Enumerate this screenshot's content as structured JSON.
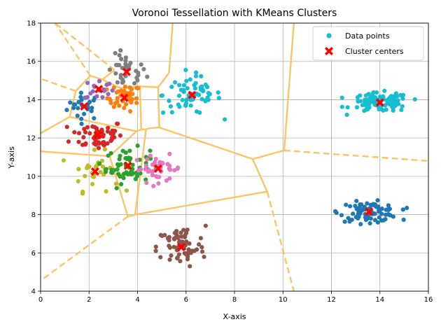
{
  "chart_data": {
    "type": "scatter",
    "title": "Voronoi Tessellation with KMeans Clusters",
    "xlabel": "X-axis",
    "ylabel": "Y-axis",
    "xlim": [
      0,
      16
    ],
    "ylim": [
      4,
      18
    ],
    "xticks": [
      0,
      2,
      4,
      6,
      8,
      10,
      12,
      14,
      16
    ],
    "yticks": [
      4,
      6,
      8,
      10,
      12,
      14,
      16,
      18
    ],
    "grid": true,
    "legend": {
      "placement": "top-right",
      "entries": [
        {
          "label": "Data points",
          "marker": "circle",
          "color": "#17becf"
        },
        {
          "label": "Cluster centers",
          "marker": "x",
          "color": "#ff0000"
        }
      ]
    },
    "voronoi_color": "#fbc15e",
    "center_color": "#ff0000",
    "clusters": [
      {
        "name": "c1",
        "color": "#1f77b4",
        "center": [
          1.8,
          13.65
        ],
        "spread": [
          0.35,
          0.35
        ],
        "n": 26
      },
      {
        "name": "c2",
        "color": "#ff7f0e",
        "center": [
          3.45,
          14.1
        ],
        "spread": [
          0.35,
          0.35
        ],
        "n": 40
      },
      {
        "name": "c3",
        "color": "#7f7f7f",
        "center": [
          3.55,
          15.45
        ],
        "spread": [
          0.4,
          0.45
        ],
        "n": 35
      },
      {
        "name": "c4",
        "color": "#9467bd",
        "center": [
          2.4,
          14.55
        ],
        "spread": [
          0.3,
          0.3
        ],
        "n": 18
      },
      {
        "name": "c5",
        "color": "#d62728",
        "center": [
          2.35,
          12.15
        ],
        "spread": [
          0.55,
          0.4
        ],
        "n": 55
      },
      {
        "name": "c6",
        "color": "#bcbd22",
        "center": [
          2.25,
          10.25
        ],
        "spread": [
          0.5,
          0.5
        ],
        "n": 30
      },
      {
        "name": "c7",
        "color": "#2ca02c",
        "center": [
          3.6,
          10.55
        ],
        "spread": [
          0.45,
          0.45
        ],
        "n": 60
      },
      {
        "name": "c8",
        "color": "#e377c2",
        "center": [
          4.85,
          10.4
        ],
        "spread": [
          0.5,
          0.35
        ],
        "n": 40
      },
      {
        "name": "c9",
        "color": "#17becf",
        "center": [
          6.25,
          14.25
        ],
        "spread": [
          0.6,
          0.5
        ],
        "n": 65
      },
      {
        "name": "c10",
        "color": "#17becf",
        "center": [
          14.0,
          13.85
        ],
        "spread": [
          0.6,
          0.25
        ],
        "n": 110
      },
      {
        "name": "c11",
        "color": "#1f77b4",
        "center": [
          13.55,
          8.15
        ],
        "spread": [
          0.6,
          0.25
        ],
        "n": 90
      },
      {
        "name": "c12",
        "color": "#8c564b",
        "center": [
          5.8,
          6.3
        ],
        "spread": [
          0.5,
          0.55
        ],
        "n": 70
      }
    ],
    "voronoi_segments": [
      {
        "from": [
          9.35,
          9.2
        ],
        "to": [
          8.75,
          10.9
        ],
        "style": "solid"
      },
      {
        "from": [
          8.75,
          10.9
        ],
        "to": [
          10.05,
          11.35
        ],
        "style": "solid"
      },
      {
        "from": [
          10.05,
          11.35
        ],
        "to": [
          10.45,
          18.0
        ],
        "style": "solid"
      },
      {
        "from": [
          10.05,
          11.35
        ],
        "to": [
          16.0,
          10.8
        ],
        "style": "dashed"
      },
      {
        "from": [
          9.35,
          9.2
        ],
        "to": [
          10.45,
          4.0
        ],
        "style": "dashed"
      },
      {
        "from": [
          9.35,
          9.2
        ],
        "to": [
          3.9,
          8.0
        ],
        "style": "solid"
      },
      {
        "from": [
          3.9,
          8.0
        ],
        "to": [
          3.6,
          7.9
        ],
        "style": "solid"
      },
      {
        "from": [
          3.6,
          7.9
        ],
        "to": [
          0.0,
          4.55
        ],
        "style": "dashed"
      },
      {
        "from": [
          3.6,
          7.9
        ],
        "to": [
          2.85,
          11.05
        ],
        "style": "solid"
      },
      {
        "from": [
          3.9,
          8.0
        ],
        "to": [
          4.35,
          12.45
        ],
        "style": "solid"
      },
      {
        "from": [
          8.75,
          10.9
        ],
        "to": [
          4.9,
          12.55
        ],
        "style": "solid"
      },
      {
        "from": [
          4.9,
          12.55
        ],
        "to": [
          4.45,
          12.5
        ],
        "style": "solid"
      },
      {
        "from": [
          4.45,
          12.5
        ],
        "to": [
          4.35,
          12.45
        ],
        "style": "solid"
      },
      {
        "from": [
          4.35,
          12.45
        ],
        "to": [
          4.15,
          12.45
        ],
        "style": "solid"
      },
      {
        "from": [
          4.15,
          12.45
        ],
        "to": [
          3.95,
          12.35
        ],
        "style": "solid"
      },
      {
        "from": [
          3.95,
          12.35
        ],
        "to": [
          2.85,
          11.05
        ],
        "style": "solid"
      },
      {
        "from": [
          2.85,
          11.05
        ],
        "to": [
          0.0,
          11.3
        ],
        "style": "solid"
      },
      {
        "from": [
          4.9,
          12.55
        ],
        "to": [
          4.85,
          14.65
        ],
        "style": "solid"
      },
      {
        "from": [
          4.85,
          14.65
        ],
        "to": [
          5.3,
          15.4
        ],
        "style": "solid"
      },
      {
        "from": [
          5.3,
          15.4
        ],
        "to": [
          5.45,
          18.0
        ],
        "style": "solid"
      },
      {
        "from": [
          4.85,
          14.65
        ],
        "to": [
          4.1,
          14.7
        ],
        "style": "solid"
      },
      {
        "from": [
          4.1,
          14.7
        ],
        "to": [
          3.3,
          14.6
        ],
        "style": "solid"
      },
      {
        "from": [
          4.1,
          14.7
        ],
        "to": [
          4.15,
          12.45
        ],
        "style": "solid"
      },
      {
        "from": [
          3.95,
          12.35
        ],
        "to": [
          1.2,
          13.1
        ],
        "style": "solid"
      },
      {
        "from": [
          1.2,
          13.1
        ],
        "to": [
          0.0,
          12.25
        ],
        "style": "solid"
      },
      {
        "from": [
          1.2,
          13.1
        ],
        "to": [
          1.45,
          14.45
        ],
        "style": "solid"
      },
      {
        "from": [
          1.45,
          14.45
        ],
        "to": [
          2.05,
          15.25
        ],
        "style": "solid"
      },
      {
        "from": [
          2.05,
          15.25
        ],
        "to": [
          2.55,
          15.05
        ],
        "style": "solid"
      },
      {
        "from": [
          2.55,
          15.05
        ],
        "to": [
          3.3,
          14.6
        ],
        "style": "solid"
      },
      {
        "from": [
          2.05,
          15.25
        ],
        "to": [
          0.6,
          18.0
        ],
        "style": "dashed"
      },
      {
        "from": [
          2.55,
          15.05
        ],
        "to": [
          3.05,
          15.55
        ],
        "style": "solid"
      },
      {
        "from": [
          3.05,
          15.55
        ],
        "to": [
          0.6,
          18.0
        ],
        "style": "dashed"
      },
      {
        "from": [
          1.45,
          14.45
        ],
        "to": [
          0.0,
          15.1
        ],
        "style": "dashed"
      }
    ]
  }
}
